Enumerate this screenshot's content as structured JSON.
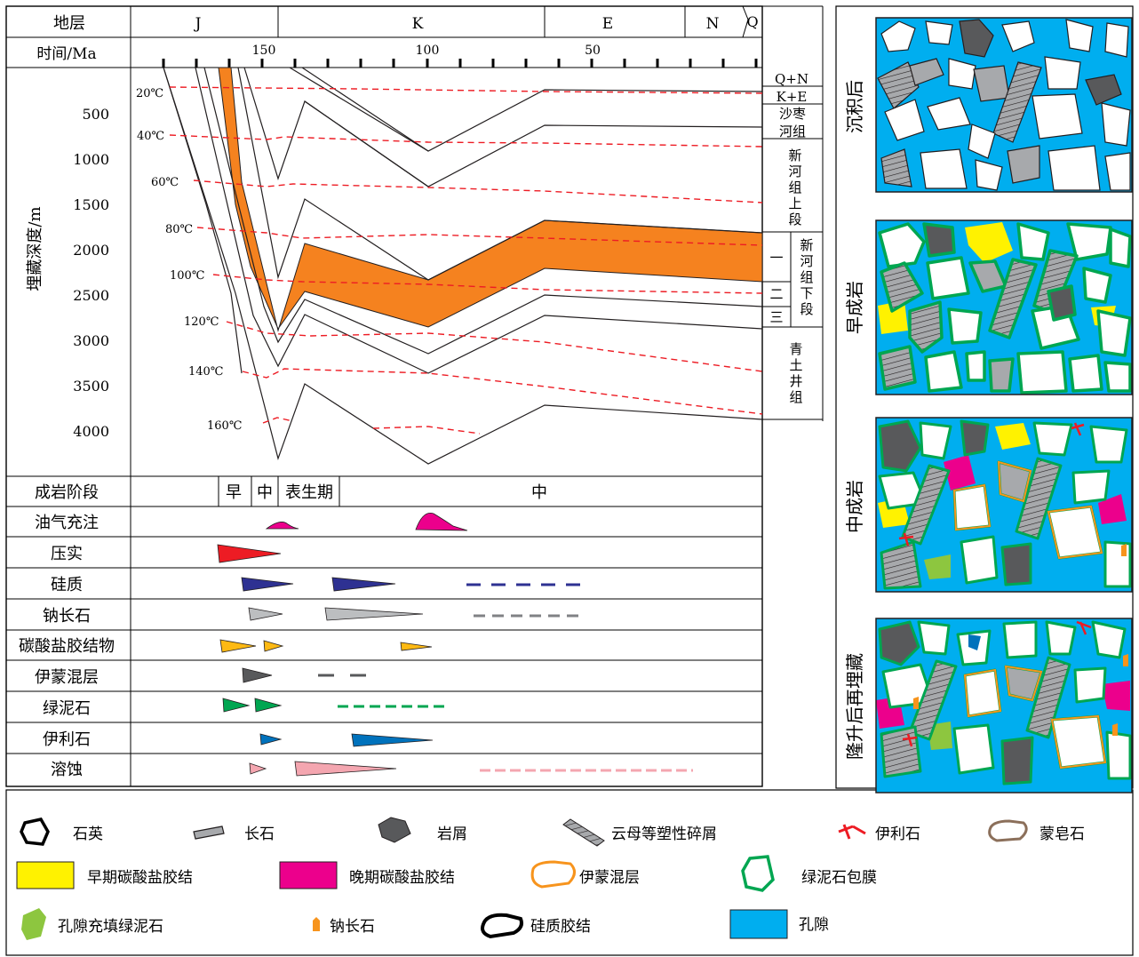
{
  "header": {
    "strata_label": "地层",
    "time_label": "时间/Ma",
    "periods": [
      "J",
      "K",
      "E",
      "N",
      "Q"
    ],
    "time_ticks": [
      "150",
      "100",
      "50"
    ]
  },
  "depth_axis": {
    "label": "埋藏深度/m",
    "ticks": [
      "500",
      "1000",
      "1500",
      "2000",
      "2500",
      "3000",
      "3500",
      "4000"
    ]
  },
  "isotherms": [
    "20℃",
    "40℃",
    "60℃",
    "80℃",
    "100℃",
    "120℃",
    "140℃",
    "160℃"
  ],
  "formations": {
    "qn": "Q+N",
    "ke": "K+E",
    "shazaohe": [
      "沙枣",
      "河组"
    ],
    "xinhe_upper": [
      "新",
      "河",
      "组",
      "上",
      "段"
    ],
    "xinhe_lower_members": [
      "一",
      "二",
      "三"
    ],
    "xinhe_lower": [
      "新",
      "河",
      "组",
      "下",
      "段"
    ],
    "qingtujing": [
      "青",
      "土",
      "井",
      "组"
    ]
  },
  "diagenesis": {
    "stage_label": "成岩阶段",
    "stages": [
      "早",
      "中",
      "表生期",
      "中"
    ],
    "rows": [
      "油气充注",
      "压实",
      "硅质",
      "钠长石",
      "碳酸盐胶结物",
      "伊蒙混层",
      "绿泥石",
      "伊利石",
      "溶蚀"
    ]
  },
  "panels": [
    "沉积后",
    "早成岩",
    "中成岩",
    "隆升后再埋藏"
  ],
  "legend": [
    {
      "key": "quartz",
      "label": "石英"
    },
    {
      "key": "feldspar",
      "label": "长石"
    },
    {
      "key": "lithic",
      "label": "岩屑"
    },
    {
      "key": "mica",
      "label": "云母等塑性碎屑"
    },
    {
      "key": "illite",
      "label": "伊利石"
    },
    {
      "key": "smectite",
      "label": "蒙皂石"
    },
    {
      "key": "early_carbonate",
      "label": "早期碳酸盐胶结"
    },
    {
      "key": "late_carbonate",
      "label": "晚期碳酸盐胶结"
    },
    {
      "key": "illite_smectite",
      "label": "伊蒙混层"
    },
    {
      "key": "chlorite_coat",
      "label": "绿泥石包膜"
    },
    {
      "key": "pore_chlorite",
      "label": "孔隙充填绿泥石"
    },
    {
      "key": "albite",
      "label": "钠长石"
    },
    {
      "key": "silica",
      "label": "硅质胶结"
    },
    {
      "key": "pore",
      "label": "孔隙"
    }
  ],
  "colors": {
    "orange": "#f5821f",
    "red_dash": "#ed1c24",
    "pore": "#00aeef",
    "yellow": "#fff200",
    "magenta": "#ec008c",
    "green": "#00a651",
    "light_green": "#8dc63f",
    "navy": "#2e3192",
    "grey": "#a7a9ac",
    "dark_grey": "#58595b",
    "pink": "#f4a6b0",
    "blue": "#0072bc",
    "brown": "#8b6f5a"
  }
}
